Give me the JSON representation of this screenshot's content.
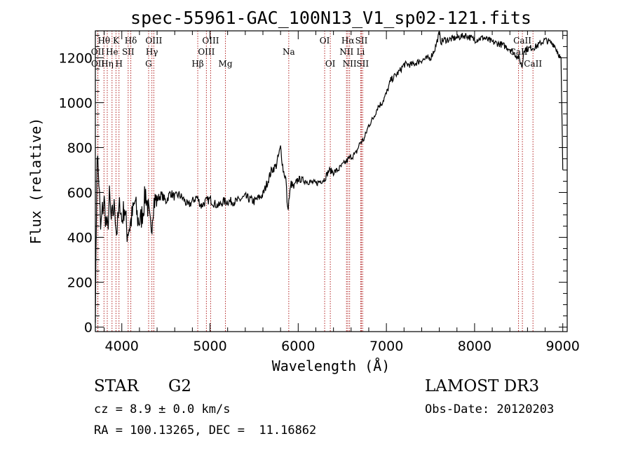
{
  "chart_data": {
    "type": "line",
    "title": "spec-55961-GAC_100N13_V1_sp02-121.fits",
    "xlabel": "Wavelength (Å)",
    "ylabel": "Flux (relative)",
    "xlim": [
      3700,
      9050
    ],
    "ylim": [
      -20,
      1320
    ],
    "x_ticks": [
      4000,
      5000,
      6000,
      7000,
      8000,
      9000
    ],
    "x_tick_labels": [
      "4000",
      "5000",
      "6000",
      "7000",
      "8000",
      "9000"
    ],
    "y_ticks": [
      0,
      200,
      400,
      600,
      800,
      1000,
      1200
    ],
    "y_tick_labels": [
      "0",
      "200",
      "400",
      "600",
      "800",
      "1000",
      "1200"
    ],
    "line_color": "#000000",
    "marker_color": "#b22222",
    "series": [
      {
        "name": "spectrum",
        "x": [
          3700,
          3720,
          3740,
          3760,
          3780,
          3800,
          3820,
          3840,
          3860,
          3880,
          3900,
          3920,
          3940,
          3960,
          3980,
          4000,
          4030,
          4060,
          4090,
          4120,
          4150,
          4180,
          4210,
          4240,
          4270,
          4300,
          4330,
          4360,
          4400,
          4450,
          4500,
          4550,
          4600,
          4650,
          4700,
          4750,
          4800,
          4850,
          4900,
          4950,
          5000,
          5050,
          5100,
          5150,
          5200,
          5300,
          5400,
          5500,
          5600,
          5700,
          5750,
          5800,
          5830,
          5860,
          5880,
          5900,
          5920,
          5950,
          6000,
          6100,
          6200,
          6300,
          6350,
          6400,
          6450,
          6500,
          6550,
          6600,
          6650,
          6700,
          6750,
          6800,
          6850,
          6900,
          6950,
          7000,
          7050,
          7100,
          7150,
          7200,
          7300,
          7400,
          7500,
          7550,
          7600,
          7620,
          7650,
          7700,
          7800,
          7900,
          8000,
          8100,
          8200,
          8300,
          8400,
          8500,
          8540,
          8560,
          8600,
          8700,
          8800,
          8850,
          8900,
          8950,
          8980,
          9000
        ],
        "y": [
          20,
          780,
          650,
          430,
          520,
          560,
          470,
          430,
          580,
          470,
          510,
          540,
          420,
          480,
          560,
          470,
          540,
          420,
          450,
          500,
          560,
          480,
          470,
          520,
          600,
          520,
          420,
          560,
          570,
          590,
          560,
          600,
          580,
          590,
          570,
          540,
          560,
          580,
          540,
          560,
          570,
          550,
          540,
          560,
          560,
          560,
          580,
          560,
          590,
          700,
          720,
          800,
          700,
          660,
          520,
          580,
          640,
          620,
          660,
          650,
          640,
          660,
          700,
          690,
          700,
          720,
          740,
          760,
          770,
          820,
          840,
          900,
          930,
          980,
          1000,
          1040,
          1100,
          1120,
          1140,
          1170,
          1170,
          1190,
          1200,
          1240,
          1310,
          1270,
          1280,
          1280,
          1290,
          1300,
          1280,
          1290,
          1270,
          1260,
          1240,
          1200,
          1160,
          1240,
          1240,
          1250,
          1280,
          1270,
          1260,
          1220,
          1190,
          700
        ]
      }
    ],
    "spectral_lines": [
      {
        "label": "Hθ",
        "x": 3798,
        "row": 1
      },
      {
        "label": "OII",
        "x": 3727,
        "row": 2
      },
      {
        "label": "OII",
        "x": 3729,
        "row": 3
      },
      {
        "label": "Hη",
        "x": 3835,
        "row": 3
      },
      {
        "label": "He",
        "x": 3889,
        "row": 2
      },
      {
        "label": "K",
        "x": 3934,
        "row": 1
      },
      {
        "label": "H",
        "x": 3968,
        "row": 3
      },
      {
        "label": "SII",
        "x": 4072,
        "row": 2
      },
      {
        "label": "Hδ",
        "x": 4102,
        "row": 1
      },
      {
        "label": "OIII",
        "x": 4363,
        "row": 1
      },
      {
        "label": "Hγ",
        "x": 4341,
        "row": 2
      },
      {
        "label": "G",
        "x": 4304,
        "row": 3
      },
      {
        "label": "Hβ",
        "x": 4861,
        "row": 3
      },
      {
        "label": "OIII",
        "x": 5007,
        "row": 1
      },
      {
        "label": "OIII",
        "x": 4959,
        "row": 2
      },
      {
        "label": "Mg",
        "x": 5175,
        "row": 3
      },
      {
        "label": "Na",
        "x": 5893,
        "row": 2
      },
      {
        "label": "OI",
        "x": 6300,
        "row": 1
      },
      {
        "label": "OI",
        "x": 6364,
        "row": 3
      },
      {
        "label": "Hα",
        "x": 6563,
        "row": 1
      },
      {
        "label": "NII",
        "x": 6548,
        "row": 2
      },
      {
        "label": "NII",
        "x": 6583,
        "row": 3
      },
      {
        "label": "SII",
        "x": 6717,
        "row": 1
      },
      {
        "label": "Li",
        "x": 6708,
        "row": 2
      },
      {
        "label": "SII",
        "x": 6731,
        "row": 3
      },
      {
        "label": "CaII",
        "x": 8542,
        "row": 1
      },
      {
        "label": "CaII",
        "x": 8498,
        "row": 2
      },
      {
        "label": "CaII",
        "x": 8662,
        "row": 3
      }
    ]
  },
  "info": {
    "object_type": "STAR",
    "subclass": "G2",
    "cz": "cz = 8.9 ± 0.0 km/s",
    "coords": "RA = 100.13265, DEC =  11.16862",
    "survey": "LAMOST DR3",
    "obs_date": "Obs-Date: 20120203"
  }
}
